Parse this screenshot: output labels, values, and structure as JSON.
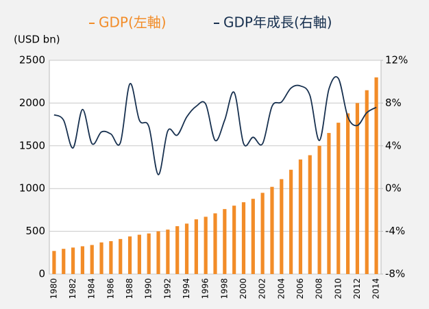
{
  "chart_data": {
    "type": "bar+line",
    "y_label": "(USD bn)",
    "categories": [
      "1980",
      null,
      "1982",
      null,
      "1984",
      null,
      "1986",
      null,
      "1988",
      null,
      "1990",
      null,
      "1992",
      null,
      "1994",
      null,
      "1996",
      null,
      "1998",
      null,
      "2000",
      null,
      "2002",
      null,
      "2004",
      null,
      "2006",
      null,
      "2008",
      null,
      "2010",
      null,
      "2012",
      null,
      "2014"
    ],
    "series": [
      {
        "name": "GDP(左軸)",
        "type": "bar",
        "color": "#f28c28",
        "axis": "y",
        "values": [
          270,
          295,
          310,
          325,
          340,
          370,
          385,
          410,
          440,
          460,
          475,
          500,
          520,
          560,
          590,
          640,
          670,
          710,
          760,
          800,
          840,
          880,
          950,
          1020,
          1110,
          1220,
          1340,
          1390,
          1500,
          1650,
          1770,
          1880,
          2000,
          2150,
          2300
        ]
      },
      {
        "name": "GDP年成長(右軸)",
        "type": "line",
        "color": "#17304f",
        "axis": "y2",
        "values": [
          6.9,
          6.4,
          3.8,
          7.4,
          4.2,
          5.3,
          5.1,
          4.3,
          9.8,
          6.4,
          5.8,
          1.3,
          5.4,
          5.0,
          6.7,
          7.7,
          7.9,
          4.5,
          6.4,
          9.0,
          4.2,
          4.8,
          4.2,
          7.7,
          8.1,
          9.4,
          9.6,
          8.7,
          4.5,
          9.3,
          10.3,
          6.7,
          5.9,
          7.1,
          7.6
        ]
      }
    ],
    "ylim": [
      0,
      2500
    ],
    "yticks": [
      0,
      500,
      1000,
      1500,
      2000,
      2500
    ],
    "y2lim": [
      -8,
      12
    ],
    "y2ticks": [
      {
        "value": -8,
        "label": "-8%"
      },
      {
        "value": -4,
        "label": "-4%"
      },
      {
        "value": 0,
        "label": "0%"
      },
      {
        "value": 4,
        "label": "4%"
      },
      {
        "value": 8,
        "label": "8%"
      },
      {
        "value": 12,
        "label": "12%"
      }
    ],
    "grid": true
  }
}
